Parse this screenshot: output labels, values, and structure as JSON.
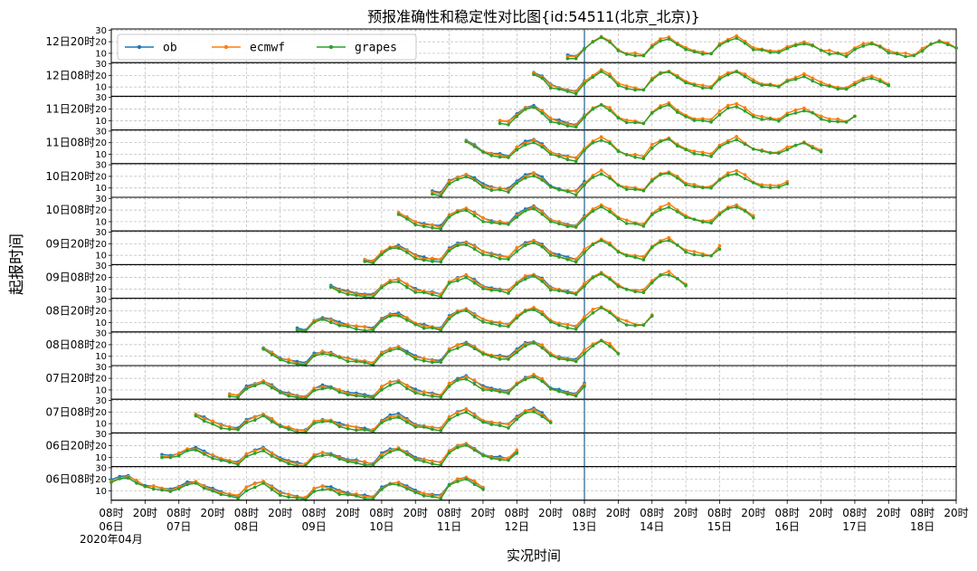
{
  "chart_data": {
    "type": "line",
    "title": "预报准确性和稳定性对比图{id:54511(北京_北京)}",
    "xlabel": "实况时间",
    "ylabel": "起报时间",
    "date_note": "2020年04月",
    "x_ticks": [
      {
        "t": 0,
        "l1": "08时",
        "l2": "06日"
      },
      {
        "t": 12,
        "l1": "20时",
        "l2": ""
      },
      {
        "t": 24,
        "l1": "08时",
        "l2": "07日"
      },
      {
        "t": 36,
        "l1": "20时",
        "l2": ""
      },
      {
        "t": 48,
        "l1": "08时",
        "l2": "08日"
      },
      {
        "t": 60,
        "l1": "20时",
        "l2": ""
      },
      {
        "t": 72,
        "l1": "08时",
        "l2": "09日"
      },
      {
        "t": 84,
        "l1": "20时",
        "l2": ""
      },
      {
        "t": 96,
        "l1": "08时",
        "l2": "10日"
      },
      {
        "t": 108,
        "l1": "20时",
        "l2": ""
      },
      {
        "t": 120,
        "l1": "08时",
        "l2": "11日"
      },
      {
        "t": 132,
        "l1": "20时",
        "l2": ""
      },
      {
        "t": 144,
        "l1": "08时",
        "l2": "12日"
      },
      {
        "t": 156,
        "l1": "20时",
        "l2": ""
      },
      {
        "t": 168,
        "l1": "08时",
        "l2": "13日"
      },
      {
        "t": 180,
        "l1": "20时",
        "l2": ""
      },
      {
        "t": 192,
        "l1": "08时",
        "l2": "14日"
      },
      {
        "t": 204,
        "l1": "20时",
        "l2": ""
      },
      {
        "t": 216,
        "l1": "08时",
        "l2": "15日"
      },
      {
        "t": 228,
        "l1": "20时",
        "l2": ""
      },
      {
        "t": 240,
        "l1": "08时",
        "l2": "16日"
      },
      {
        "t": 252,
        "l1": "20时",
        "l2": ""
      },
      {
        "t": 264,
        "l1": "08时",
        "l2": "17日"
      },
      {
        "t": 276,
        "l1": "20时",
        "l2": ""
      },
      {
        "t": 288,
        "l1": "08时",
        "l2": "18日"
      },
      {
        "t": 300,
        "l1": "20时",
        "l2": ""
      }
    ],
    "x_range_hours": [
      0,
      300
    ],
    "y_ticks": [
      10,
      20,
      30
    ],
    "y_range": [
      2,
      31
    ],
    "grid": true,
    "legend_position": "top-left",
    "now_marker_hour": 168,
    "series": [
      {
        "name": "ob",
        "color": "#1f77b4"
      },
      {
        "name": "ecmwf",
        "color": "#ff7f0e"
      },
      {
        "name": "grapes",
        "color": "#2ca02c"
      }
    ],
    "base_curve": [
      [
        0,
        18
      ],
      [
        3,
        21
      ],
      [
        6,
        22
      ],
      [
        9,
        18
      ],
      [
        12,
        14
      ],
      [
        15,
        13
      ],
      [
        18,
        11
      ],
      [
        21,
        10
      ],
      [
        24,
        13
      ],
      [
        27,
        16
      ],
      [
        30,
        17
      ],
      [
        33,
        14
      ],
      [
        36,
        11
      ],
      [
        39,
        8
      ],
      [
        42,
        6
      ],
      [
        45,
        5
      ],
      [
        48,
        12
      ],
      [
        51,
        15
      ],
      [
        54,
        17
      ],
      [
        57,
        13
      ],
      [
        60,
        8
      ],
      [
        63,
        6
      ],
      [
        66,
        4
      ],
      [
        69,
        3
      ],
      [
        72,
        11
      ],
      [
        75,
        13
      ],
      [
        78,
        12
      ],
      [
        81,
        9
      ],
      [
        84,
        7
      ],
      [
        87,
        6
      ],
      [
        90,
        5
      ],
      [
        93,
        4
      ],
      [
        96,
        12
      ],
      [
        99,
        16
      ],
      [
        102,
        17
      ],
      [
        105,
        13
      ],
      [
        108,
        9
      ],
      [
        111,
        7
      ],
      [
        114,
        6
      ],
      [
        117,
        5
      ],
      [
        120,
        15
      ],
      [
        123,
        19
      ],
      [
        126,
        21
      ],
      [
        129,
        17
      ],
      [
        132,
        12
      ],
      [
        135,
        10
      ],
      [
        138,
        9
      ],
      [
        141,
        8
      ],
      [
        144,
        15
      ],
      [
        147,
        20
      ],
      [
        150,
        22
      ],
      [
        153,
        18
      ],
      [
        156,
        11
      ],
      [
        159,
        9
      ],
      [
        162,
        7
      ],
      [
        165,
        6
      ],
      [
        168,
        14
      ],
      [
        171,
        20
      ],
      [
        174,
        24
      ],
      [
        177,
        20
      ],
      [
        180,
        13
      ],
      [
        183,
        10
      ],
      [
        186,
        9
      ],
      [
        189,
        8
      ],
      [
        192,
        17
      ],
      [
        195,
        22
      ],
      [
        198,
        24
      ],
      [
        201,
        19
      ],
      [
        204,
        14
      ],
      [
        207,
        12
      ],
      [
        210,
        11
      ],
      [
        213,
        10
      ],
      [
        216,
        17
      ],
      [
        219,
        22
      ],
      [
        222,
        24
      ],
      [
        225,
        20
      ],
      [
        228,
        15
      ],
      [
        231,
        13
      ],
      [
        234,
        12
      ],
      [
        237,
        11
      ],
      [
        240,
        15
      ],
      [
        243,
        18
      ],
      [
        246,
        20
      ],
      [
        249,
        17
      ],
      [
        252,
        13
      ],
      [
        255,
        11
      ],
      [
        258,
        10
      ],
      [
        261,
        9
      ],
      [
        264,
        14
      ],
      [
        267,
        17
      ],
      [
        270,
        19
      ],
      [
        273,
        16
      ],
      [
        276,
        12
      ],
      [
        279,
        10
      ],
      [
        282,
        9
      ],
      [
        285,
        8
      ],
      [
        288,
        14
      ],
      [
        291,
        18
      ],
      [
        294,
        21
      ],
      [
        297,
        18
      ],
      [
        300,
        15
      ]
    ],
    "rows": [
      {
        "label": "12日20时",
        "start": 162,
        "end": 300
      },
      {
        "label": "12日08时",
        "start": 150,
        "end": 276
      },
      {
        "label": "11日20时",
        "start": 138,
        "end": 264
      },
      {
        "label": "11日08时",
        "start": 126,
        "end": 252
      },
      {
        "label": "10日20时",
        "start": 114,
        "end": 240
      },
      {
        "label": "10日08时",
        "start": 102,
        "end": 228
      },
      {
        "label": "09日20时",
        "start": 90,
        "end": 216
      },
      {
        "label": "09日08时",
        "start": 78,
        "end": 204
      },
      {
        "label": "08日20时",
        "start": 66,
        "end": 192
      },
      {
        "label": "08日08时",
        "start": 54,
        "end": 180
      },
      {
        "label": "07日20时",
        "start": 42,
        "end": 168
      },
      {
        "label": "07日08时",
        "start": 30,
        "end": 156
      },
      {
        "label": "06日20时",
        "start": 18,
        "end": 144
      },
      {
        "label": "06日08时",
        "start": 0,
        "end": 132
      }
    ]
  }
}
